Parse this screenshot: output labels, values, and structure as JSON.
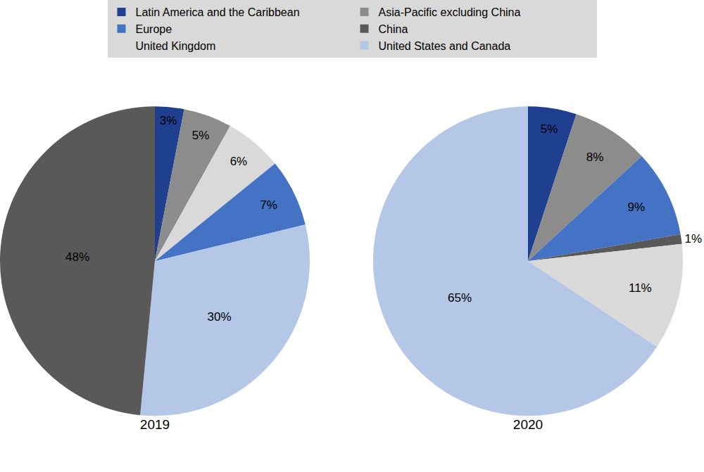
{
  "chart_data": [
    {
      "type": "pie",
      "title": "2019",
      "categories": [
        "Latin America and the Caribbean",
        "Asia-Pacific excluding China",
        "United Kingdom",
        "Europe",
        "United States and Canada",
        "China"
      ],
      "values": [
        3,
        5,
        6,
        7,
        30,
        48
      ],
      "value_labels": [
        "3%",
        "5%",
        "6%",
        "7%",
        "30%",
        "48%"
      ],
      "colors": [
        "#1f3f8f",
        "#8c8c8c",
        "#d9d9d9",
        "#4472c4",
        "#b4c7e7",
        "#595959"
      ],
      "data_labels": true,
      "legend": "top"
    },
    {
      "type": "pie",
      "title": "2020",
      "categories": [
        "Latin America and the Caribbean",
        "Asia-Pacific excluding China",
        "Europe",
        "China",
        "United Kingdom",
        "United States and Canada"
      ],
      "values": [
        5,
        8,
        9,
        1,
        11,
        65
      ],
      "value_labels": [
        "5%",
        "8%",
        "9%",
        "1%",
        "11%",
        "65%"
      ],
      "colors": [
        "#1f3f8f",
        "#8c8c8c",
        "#4472c4",
        "#595959",
        "#d9d9d9",
        "#b4c7e7"
      ],
      "data_labels": true,
      "legend": "top"
    }
  ]
}
